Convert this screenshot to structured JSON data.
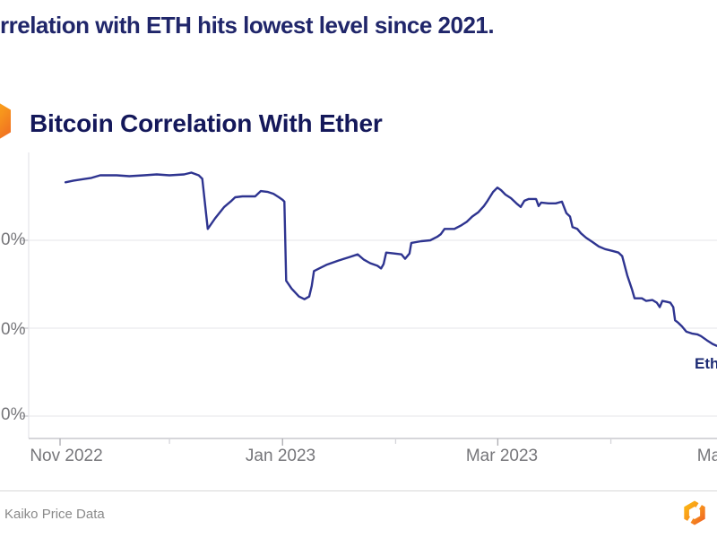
{
  "page": {
    "headline": "rrelation with ETH hits lowest level since 2021."
  },
  "chart": {
    "title": "Bitcoin Correlation With Ether",
    "line_end_label": "Eth",
    "x_tick_labels": [
      "Nov 2022",
      "Jan 2023",
      "Mar 2023",
      "Ma"
    ],
    "y_tick_labels": [
      "0%",
      "0%",
      "0%"
    ]
  },
  "chart_data": {
    "type": "line",
    "title": "Bitcoin Correlation With Ether",
    "xlabel": "",
    "ylabel": "",
    "x_unit": "days since 2022-11-01",
    "x_tick_labels_visible": [
      "Nov 2022",
      "Jan 2023",
      "Mar 2023",
      "Ma"
    ],
    "y_tick_labels_visible": [
      "0%",
      "0%",
      "0%"
    ],
    "y_gridline_values_pct": [
      90,
      80,
      70
    ],
    "ylim": [
      76,
      100
    ],
    "grid": "horizontal-only",
    "legend_position": "end-of-line-label",
    "series": [
      {
        "name": "Eth",
        "points": [
          [
            1.5,
            96.6
          ],
          [
            3.7,
            96.8
          ],
          [
            6.9,
            97.0
          ],
          [
            8.6,
            97.1
          ],
          [
            11,
            97.4
          ],
          [
            15.5,
            97.4
          ],
          [
            19,
            97.3
          ],
          [
            23,
            97.4
          ],
          [
            26.5,
            97.5
          ],
          [
            30,
            97.4
          ],
          [
            34,
            97.5
          ],
          [
            36,
            97.7
          ],
          [
            38,
            97.4
          ],
          [
            39,
            97.0
          ],
          [
            40.5,
            91.3
          ],
          [
            42.5,
            92.5
          ],
          [
            45,
            93.8
          ],
          [
            47,
            94.5
          ],
          [
            48,
            94.9
          ],
          [
            50,
            95.0
          ],
          [
            53.5,
            95.0
          ],
          [
            55,
            95.6
          ],
          [
            57,
            95.5
          ],
          [
            58.5,
            95.3
          ],
          [
            60,
            94.9
          ],
          [
            61,
            94.6
          ],
          [
            61.5,
            94.4
          ],
          [
            62,
            85.4
          ],
          [
            63.5,
            84.5
          ],
          [
            65.5,
            83.6
          ],
          [
            67,
            83.3
          ],
          [
            68.3,
            83.6
          ],
          [
            69,
            84.8
          ],
          [
            69.6,
            86.5
          ],
          [
            71,
            86.8
          ],
          [
            73,
            87.2
          ],
          [
            76.4,
            87.7
          ],
          [
            79.4,
            88.1
          ],
          [
            81.6,
            88.4
          ],
          [
            83.3,
            87.8
          ],
          [
            85,
            87.4
          ],
          [
            87,
            87.1
          ],
          [
            88,
            86.8
          ],
          [
            88.7,
            87.3
          ],
          [
            89.4,
            88.6
          ],
          [
            91.6,
            88.5
          ],
          [
            93.6,
            88.4
          ],
          [
            94.6,
            87.9
          ],
          [
            95.8,
            88.5
          ],
          [
            96.3,
            89.7
          ],
          [
            99,
            89.9
          ],
          [
            101.5,
            90.0
          ],
          [
            103.4,
            90.4
          ],
          [
            104.4,
            90.7
          ],
          [
            105.4,
            91.3
          ],
          [
            108.1,
            91.3
          ],
          [
            110,
            91.7
          ],
          [
            111.5,
            92.1
          ],
          [
            113,
            92.7
          ],
          [
            114.7,
            93.2
          ],
          [
            116.2,
            93.9
          ],
          [
            117.2,
            94.5
          ],
          [
            118.7,
            95.5
          ],
          [
            119.9,
            96.0
          ],
          [
            120.9,
            95.7
          ],
          [
            122.1,
            95.2
          ],
          [
            123.6,
            94.8
          ],
          [
            125.1,
            94.2
          ],
          [
            126.3,
            93.8
          ],
          [
            127.3,
            94.5
          ],
          [
            128.5,
            94.7
          ],
          [
            130.5,
            94.7
          ],
          [
            131.2,
            93.9
          ],
          [
            131.9,
            94.3
          ],
          [
            133.9,
            94.2
          ],
          [
            135.9,
            94.2
          ],
          [
            137.6,
            94.4
          ],
          [
            138.8,
            93.1
          ],
          [
            139.8,
            92.7
          ],
          [
            140.5,
            91.5
          ],
          [
            141.8,
            91.3
          ],
          [
            142.8,
            90.8
          ],
          [
            144.2,
            90.3
          ],
          [
            146,
            89.8
          ],
          [
            147.7,
            89.3
          ],
          [
            149.4,
            89.0
          ],
          [
            151.4,
            88.8
          ],
          [
            153.1,
            88.6
          ],
          [
            154.1,
            88.2
          ],
          [
            155.5,
            86.0
          ],
          [
            156.8,
            84.4
          ],
          [
            157.5,
            83.4
          ],
          [
            159.5,
            83.4
          ],
          [
            160.7,
            83.1
          ],
          [
            162.4,
            83.2
          ],
          [
            163.6,
            82.9
          ],
          [
            164.4,
            82.4
          ],
          [
            165.1,
            83.1
          ],
          [
            166.3,
            83.0
          ],
          [
            167.3,
            82.9
          ],
          [
            168.1,
            82.4
          ],
          [
            168.6,
            80.9
          ],
          [
            169.5,
            80.6
          ],
          [
            170.5,
            80.2
          ],
          [
            171.7,
            79.6
          ],
          [
            173.2,
            79.4
          ],
          [
            174.7,
            79.3
          ],
          [
            175.7,
            79.1
          ],
          [
            177.4,
            78.6
          ],
          [
            178.9,
            78.2
          ],
          [
            180,
            78.0
          ]
        ]
      }
    ]
  },
  "colors": {
    "line": "#2e3490",
    "headline": "#20266a",
    "title": "#14185a",
    "axis_text": "#76767a",
    "accent_orange": "#f7941d"
  },
  "footer": {
    "source": "Kaiko Price Data"
  }
}
